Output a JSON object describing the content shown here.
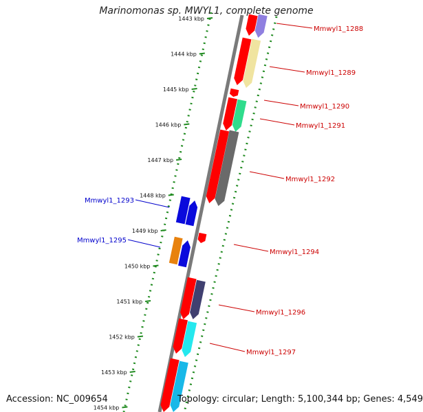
{
  "title": "Marinomonas sp. MWYL1, complete genome",
  "accession": "Accession: NC_009654",
  "topology": "Topology: circular; Length: 5,100,344 bp; Genes: 4,549",
  "colors": {
    "backbone": "#7a7a7a",
    "dots": "#1f8a1f",
    "label_plus": "#cc0000",
    "label_minus": "#0000cc",
    "cds": "#ff0000"
  },
  "ticks": [
    "1443 kbp",
    "1444 kbp",
    "1445 kbp",
    "1446 kbp",
    "1447 kbp",
    "1448 kbp",
    "1449 kbp",
    "1450 kbp",
    "1451 kbp",
    "1452 kbp",
    "1453 kbp",
    "1454 kbp"
  ],
  "genes": [
    {
      "label": "Mmwyl1_1288",
      "strand": "plus"
    },
    {
      "label": "Mmwyl1_1289",
      "strand": "plus"
    },
    {
      "label": "Mmwyl1_1290",
      "strand": "plus"
    },
    {
      "label": "Mmwyl1_1291",
      "strand": "plus"
    },
    {
      "label": "Mmwyl1_1292",
      "strand": "plus"
    },
    {
      "label": "Mmwyl1_1293",
      "strand": "minus"
    },
    {
      "label": "Mmwyl1_1294",
      "strand": "plus"
    },
    {
      "label": "Mmwyl1_1295",
      "strand": "minus"
    },
    {
      "label": "Mmwyl1_1296",
      "strand": "plus"
    },
    {
      "label": "Mmwyl1_1297",
      "strand": "plus"
    }
  ]
}
